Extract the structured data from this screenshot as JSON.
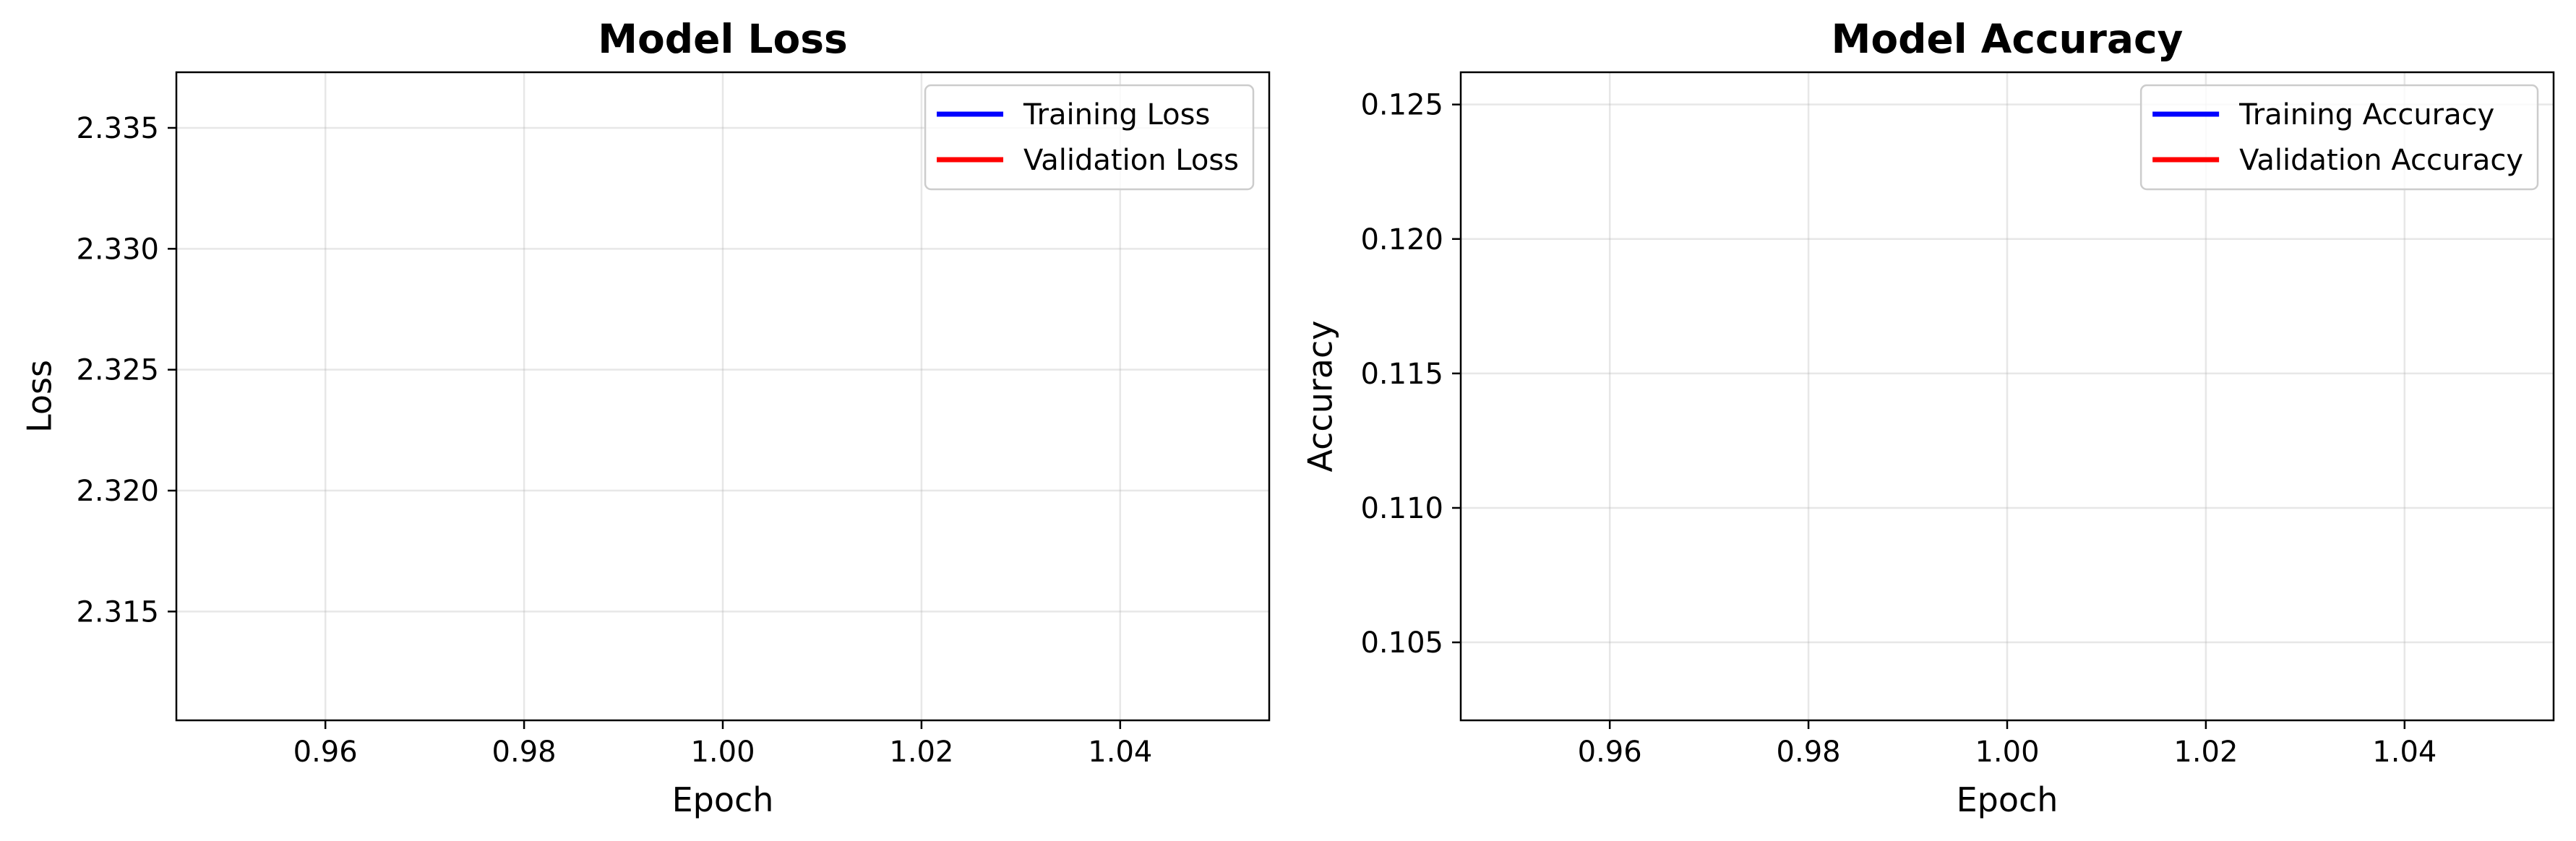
{
  "chart_data": [
    {
      "type": "line",
      "title": "Model Loss",
      "xlabel": "Epoch",
      "ylabel": "Loss",
      "xlim": [
        0.945,
        1.055
      ],
      "ylim": [
        2.3105,
        2.3373
      ],
      "xticks": [
        0.96,
        0.98,
        1.0,
        1.02,
        1.04
      ],
      "xtick_labels": [
        "0.96",
        "0.98",
        "1.00",
        "1.02",
        "1.04"
      ],
      "yticks": [
        2.315,
        2.32,
        2.325,
        2.33,
        2.335
      ],
      "ytick_labels": [
        "2.315",
        "2.320",
        "2.325",
        "2.330",
        "2.335"
      ],
      "grid": true,
      "legend_position": "top-right",
      "series": [
        {
          "name": "Training Loss",
          "color": "#0000ff",
          "x": [],
          "y": []
        },
        {
          "name": "Validation Loss",
          "color": "#ff0000",
          "x": [],
          "y": []
        }
      ]
    },
    {
      "type": "line",
      "title": "Model Accuracy",
      "xlabel": "Epoch",
      "ylabel": "Accuracy",
      "xlim": [
        0.945,
        1.055
      ],
      "ylim": [
        0.1021,
        0.1262
      ],
      "xticks": [
        0.96,
        0.98,
        1.0,
        1.02,
        1.04
      ],
      "xtick_labels": [
        "0.96",
        "0.98",
        "1.00",
        "1.02",
        "1.04"
      ],
      "yticks": [
        0.105,
        0.11,
        0.115,
        0.12,
        0.125
      ],
      "ytick_labels": [
        "0.105",
        "0.110",
        "0.115",
        "0.120",
        "0.125"
      ],
      "grid": true,
      "legend_position": "top-right",
      "series": [
        {
          "name": "Training Accuracy",
          "color": "#0000ff",
          "x": [],
          "y": []
        },
        {
          "name": "Validation Accuracy",
          "color": "#ff0000",
          "x": [],
          "y": []
        }
      ]
    }
  ]
}
